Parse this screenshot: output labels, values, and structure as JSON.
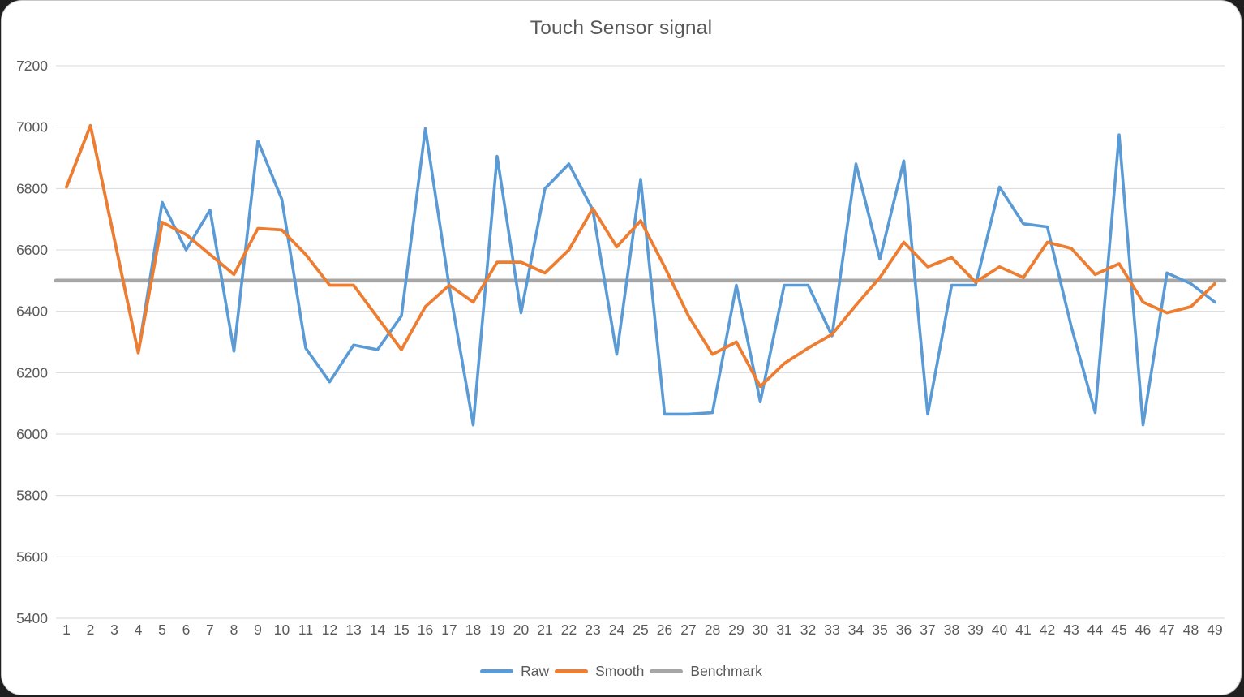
{
  "window": {
    "title": "Touch Sensor signal"
  },
  "chart_data": {
    "type": "line",
    "title": "Touch Sensor signal",
    "x": [
      1,
      2,
      3,
      4,
      5,
      6,
      7,
      8,
      9,
      10,
      11,
      12,
      13,
      14,
      15,
      16,
      17,
      18,
      19,
      20,
      21,
      22,
      23,
      24,
      25,
      26,
      27,
      28,
      29,
      30,
      31,
      32,
      33,
      34,
      35,
      36,
      37,
      38,
      39,
      40,
      41,
      42,
      43,
      44,
      45,
      46,
      47,
      48,
      49
    ],
    "series": [
      {
        "name": "Raw",
        "color": "#5B9BD5",
        "stroke_width": 3.6,
        "values": [
          6805,
          7005,
          6635,
          6265,
          6755,
          6600,
          6730,
          6270,
          6955,
          6765,
          6280,
          6170,
          6290,
          6275,
          6385,
          6995,
          6480,
          6030,
          6905,
          6395,
          6800,
          6880,
          6730,
          6260,
          6830,
          6065,
          6065,
          6070,
          6485,
          6105,
          6485,
          6485,
          6320,
          6880,
          6570,
          6890,
          6065,
          6485,
          6485,
          6805,
          6685,
          6675,
          6350,
          6070,
          6975,
          6030,
          6525,
          6490,
          6430
        ]
      },
      {
        "name": "Smooth",
        "color": "#ED7D31",
        "stroke_width": 3.8,
        "values": [
          6805,
          7005,
          6635,
          6265,
          6690,
          6650,
          6585,
          6520,
          6670,
          6665,
          6585,
          6485,
          6485,
          6380,
          6275,
          6415,
          6485,
          6430,
          6560,
          6560,
          6525,
          6600,
          6735,
          6610,
          6695,
          6545,
          6385,
          6260,
          6300,
          6155,
          6230,
          6280,
          6325,
          6420,
          6510,
          6625,
          6545,
          6575,
          6495,
          6545,
          6510,
          6625,
          6605,
          6520,
          6555,
          6430,
          6395,
          6415,
          6490
        ]
      },
      {
        "name": "Benchmark",
        "color": "#A6A6A6",
        "stroke_width": 4.6,
        "constant": 6500
      }
    ],
    "ylim": [
      5400,
      7200
    ],
    "y_ticks": [
      7200,
      7000,
      6800,
      6600,
      6400,
      6200,
      6000,
      5800,
      5600,
      5400
    ],
    "grid": "horizontal",
    "legend_position": "bottom",
    "gridline_color": "#d9d9d9",
    "text_color": "#595959"
  }
}
